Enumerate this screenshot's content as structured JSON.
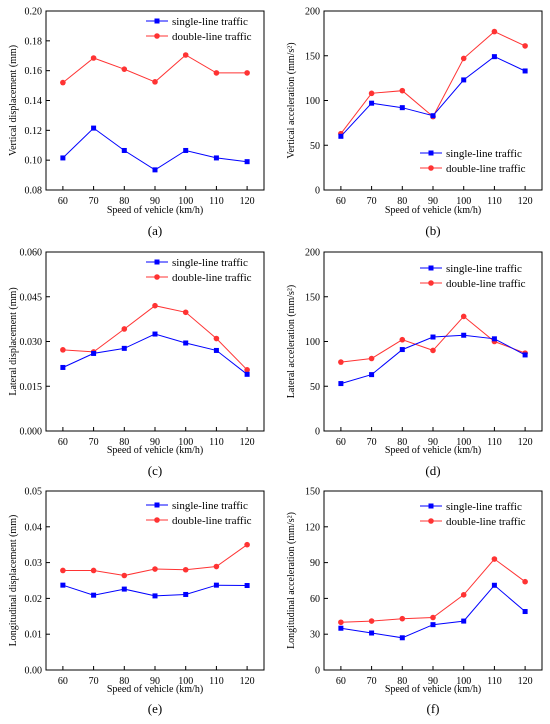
{
  "chart_data": [
    {
      "type": "line",
      "panel_label": "(a)",
      "xlabel": "Speed of vehicle (km/h)",
      "ylabel": "Vertical displacement (mm)",
      "categories": [
        60,
        70,
        80,
        90,
        100,
        110,
        120
      ],
      "ylim": [
        0.08,
        0.2
      ],
      "yticks": [
        "0.08",
        "0.10",
        "0.12",
        "0.14",
        "0.16",
        "0.18",
        "0.20"
      ],
      "legend_position": "top-center",
      "grid": false,
      "series": [
        {
          "name": "single-line traffic",
          "color": "#0000ff",
          "marker": "square",
          "values": [
            0.1015,
            0.1215,
            0.1065,
            0.0935,
            0.1065,
            0.1015,
            0.099
          ]
        },
        {
          "name": "double-line traffic",
          "color": "#ff3333",
          "marker": "circle",
          "values": [
            0.152,
            0.1685,
            0.161,
            0.1525,
            0.1705,
            0.1585,
            0.1585
          ]
        }
      ]
    },
    {
      "type": "line",
      "panel_label": "(b)",
      "xlabel": "Speed of vehicle (km/h)",
      "ylabel": "Vertical acceleration (mm/s²)",
      "categories": [
        60,
        70,
        80,
        90,
        100,
        110,
        120
      ],
      "ylim": [
        0,
        200
      ],
      "yticks": [
        "0",
        "50",
        "100",
        "150",
        "200"
      ],
      "legend_position": "bottom-right",
      "grid": false,
      "series": [
        {
          "name": "single-line traffic",
          "color": "#0000ff",
          "marker": "square",
          "values": [
            60,
            97,
            92,
            83,
            123,
            149,
            133
          ]
        },
        {
          "name": "double-line traffic",
          "color": "#ff3333",
          "marker": "circle",
          "values": [
            63,
            108,
            111,
            82,
            147,
            177,
            161
          ]
        }
      ]
    },
    {
      "type": "line",
      "panel_label": "(c)",
      "xlabel": "Speed of vehicle (km/h)",
      "ylabel": "Lateral displacement (mm)",
      "categories": [
        60,
        70,
        80,
        90,
        100,
        110,
        120
      ],
      "ylim": [
        0,
        0.06
      ],
      "yticks": [
        "0.000",
        "0.015",
        "0.030",
        "0.045",
        "0.060"
      ],
      "legend_position": "top-right",
      "grid": false,
      "series": [
        {
          "name": "single-line traffic",
          "color": "#0000ff",
          "marker": "square",
          "values": [
            0.0213,
            0.026,
            0.0277,
            0.0325,
            0.0295,
            0.027,
            0.019
          ]
        },
        {
          "name": "double-line traffic",
          "color": "#ff3333",
          "marker": "circle",
          "values": [
            0.0272,
            0.0265,
            0.0342,
            0.042,
            0.0398,
            0.031,
            0.0205
          ]
        }
      ]
    },
    {
      "type": "line",
      "panel_label": "(d)",
      "xlabel": "Speed of vehicle (km/h)",
      "ylabel": "Lateral acceleration (mm/s²)",
      "categories": [
        60,
        70,
        80,
        90,
        100,
        110,
        120
      ],
      "ylim": [
        0,
        200
      ],
      "yticks": [
        "0",
        "50",
        "100",
        "150",
        "200"
      ],
      "legend_position": "top-right",
      "grid": false,
      "series": [
        {
          "name": "single-line traffic",
          "color": "#0000ff",
          "marker": "square",
          "values": [
            53,
            63,
            91,
            105,
            107,
            103,
            85
          ]
        },
        {
          "name": "double-line traffic",
          "color": "#ff3333",
          "marker": "circle",
          "values": [
            77,
            81,
            102,
            90,
            128,
            100,
            87
          ]
        }
      ]
    },
    {
      "type": "line",
      "panel_label": "(e)",
      "xlabel": "Speed of vehicle (km/h)",
      "ylabel": "Longitudinal displacement (mm)",
      "categories": [
        60,
        70,
        80,
        90,
        100,
        110,
        120
      ],
      "ylim": [
        0,
        0.05
      ],
      "yticks": [
        "0.00",
        "0.01",
        "0.02",
        "0.03",
        "0.04",
        "0.05"
      ],
      "legend_position": "top-right",
      "grid": false,
      "series": [
        {
          "name": "single-line traffic",
          "color": "#0000ff",
          "marker": "square",
          "values": [
            0.0237,
            0.0209,
            0.0226,
            0.0207,
            0.0211,
            0.0237,
            0.0236
          ]
        },
        {
          "name": "double-line traffic",
          "color": "#ff3333",
          "marker": "circle",
          "values": [
            0.0278,
            0.0278,
            0.0264,
            0.0282,
            0.028,
            0.0289,
            0.035
          ]
        }
      ]
    },
    {
      "type": "line",
      "panel_label": "(f)",
      "xlabel": "Speed of vehicle (km/h)",
      "ylabel": "Longitudinal acceleration (mm/s²)",
      "categories": [
        60,
        70,
        80,
        90,
        100,
        110,
        120
      ],
      "ylim": [
        0,
        150
      ],
      "yticks": [
        "0",
        "30",
        "60",
        "90",
        "120",
        "150"
      ],
      "legend_position": "top-right",
      "grid": false,
      "series": [
        {
          "name": "single-line traffic",
          "color": "#0000ff",
          "marker": "square",
          "values": [
            35,
            31,
            27,
            38,
            41,
            71,
            49
          ]
        },
        {
          "name": "double-line traffic",
          "color": "#ff3333",
          "marker": "circle",
          "values": [
            40,
            41,
            43,
            44,
            63,
            93,
            74
          ]
        }
      ]
    }
  ]
}
